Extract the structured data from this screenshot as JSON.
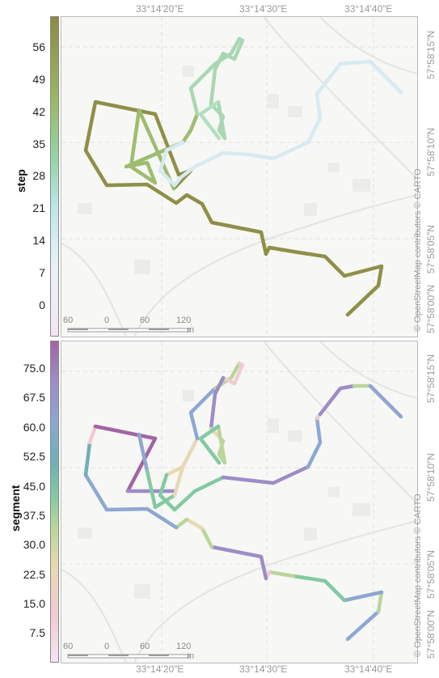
{
  "colors": {
    "step_low": "#f0d0ec",
    "step_mid": "#cce8ee",
    "step_green": "#96cfa6",
    "step_high": "#8c8b44"
  },
  "panels": [
    {
      "name": "step",
      "legend_title": "step",
      "legend_ticks": [
        "56",
        "49",
        "42",
        "35",
        "28",
        "21",
        "14",
        "7",
        "0"
      ],
      "top_coords": [
        "33°14'20\"E",
        "33°14'30\"E",
        "33°14'40\"E"
      ],
      "right_coords": [
        "57°58'15\"N",
        "57°58'10\"N",
        "57°58'05\"N",
        "57°58'00\"N"
      ],
      "attribution": "© OpenStreetMap contributors © CARTO",
      "scale_labels": [
        "60",
        "0",
        "60",
        "120"
      ],
      "scale_unit": "m"
    },
    {
      "name": "segment",
      "legend_title": "segment",
      "legend_ticks": [
        "75.0",
        "67.5",
        "60.0",
        "52.5",
        "45.0",
        "37.5",
        "30.0",
        "22.5",
        "15.0",
        "7.5"
      ],
      "top_coords": [
        "33°14'20\"E",
        "33°14'30\"E",
        "33°14'40\"E"
      ],
      "right_coords": [
        "57°58'15\"N",
        "57°58'10\"N",
        "57°58'05\"N",
        "57°58'00\"N"
      ],
      "attribution": "© OpenStreetMap contributors © CARTO",
      "scale_labels": [
        "60",
        "0",
        "60",
        "120"
      ],
      "scale_unit": "m"
    }
  ]
}
